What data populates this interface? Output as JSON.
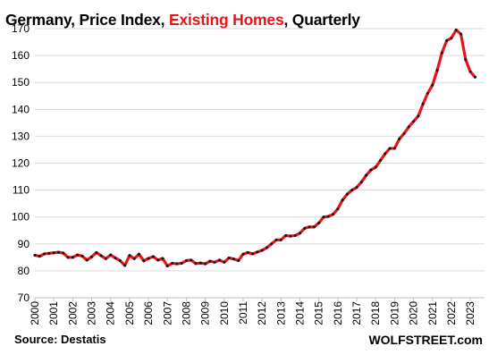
{
  "title": {
    "part1": "Germany, Price Index, ",
    "highlight": "Existing Homes",
    "part2": ", Quarterly",
    "highlight_color": "#e8141a"
  },
  "footer": {
    "source": "Source: Destatis",
    "brand": "WOLFSTREET.com"
  },
  "chart_data": {
    "type": "line",
    "title": "Germany, Price Index, Existing Homes, Quarterly",
    "xlabel": "",
    "ylabel": "",
    "ylim": [
      70,
      172
    ],
    "yticks": [
      70,
      80,
      90,
      100,
      110,
      120,
      130,
      140,
      150,
      160,
      170
    ],
    "xlim": [
      2000.0,
      2023.75
    ],
    "xticks": [
      "2000",
      "2001",
      "2002",
      "2003",
      "2004",
      "2005",
      "2006",
      "2007",
      "2008",
      "2009",
      "2010",
      "2011",
      "2012",
      "2013",
      "2014",
      "2015",
      "2016",
      "2017",
      "2018",
      "2019",
      "2020",
      "2021",
      "2022",
      "2023"
    ],
    "grid": "horizontal",
    "line_color": "#e8141a",
    "marker_color": "#111111",
    "series": [
      {
        "frequency": "quarterly",
        "start": "2000-Q1",
        "values": [
          85.8,
          85.4,
          86.3,
          86.5,
          86.7,
          86.9,
          86.6,
          85.0,
          85.0,
          85.9,
          85.5,
          84.0,
          85.2,
          86.8,
          85.6,
          84.5,
          85.9,
          84.8,
          83.8,
          82.0,
          85.7,
          84.5,
          86.2,
          83.7,
          84.6,
          85.3,
          84.0,
          84.6,
          81.8,
          82.8,
          82.6,
          82.8,
          83.8,
          84.0,
          82.7,
          82.9,
          82.6,
          83.6,
          83.2,
          84.0,
          83.2,
          84.8,
          84.4,
          83.8,
          86.2,
          86.8,
          86.3,
          87.0,
          87.6,
          88.6,
          90.0,
          91.5,
          91.5,
          93.1,
          92.9,
          93.1,
          94.0,
          95.8,
          96.3,
          96.3,
          97.8,
          100.0,
          100.2,
          101.0,
          103.0,
          106.3,
          108.5,
          110.0,
          111.0,
          113.0,
          115.5,
          117.5,
          118.5,
          121.0,
          123.5,
          125.5,
          125.5,
          129.0,
          131.0,
          133.5,
          135.5,
          137.5,
          142.0,
          146.0,
          149.0,
          154.5,
          161.0,
          165.5,
          166.5,
          169.5,
          168.0,
          158.5,
          154.0,
          152.0
        ]
      }
    ]
  }
}
